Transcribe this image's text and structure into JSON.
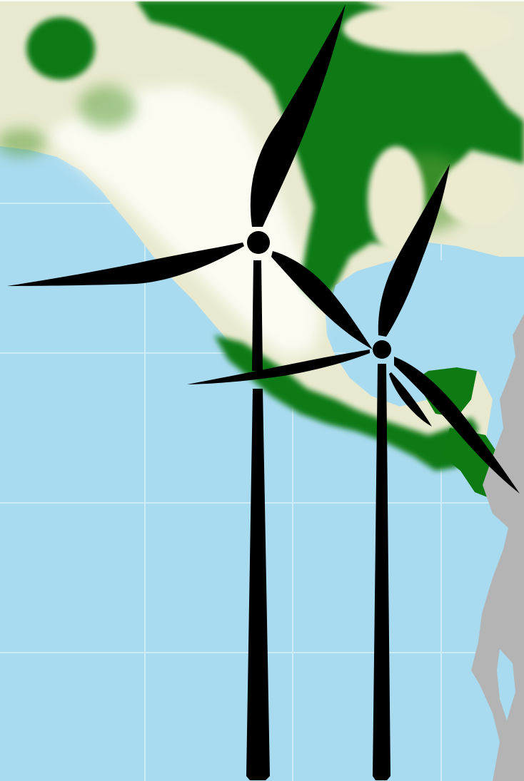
{
  "colors": {
    "ocean": "#a9dbf0",
    "ocean_grid": "#d4eef9",
    "land_dry": "#e9e9cf",
    "land_pale": "#fbfbf2",
    "land_green": "#0d7a12",
    "land_green_light": "#5c9e38",
    "unmapped_land": "#b4b4b4",
    "turbine": "#000000"
  },
  "turbines": [
    {
      "name": "left-turbine"
    },
    {
      "name": "right-turbine"
    }
  ],
  "icons": {
    "turbine": "wind-turbine-icon",
    "background": "vegetation-map"
  }
}
